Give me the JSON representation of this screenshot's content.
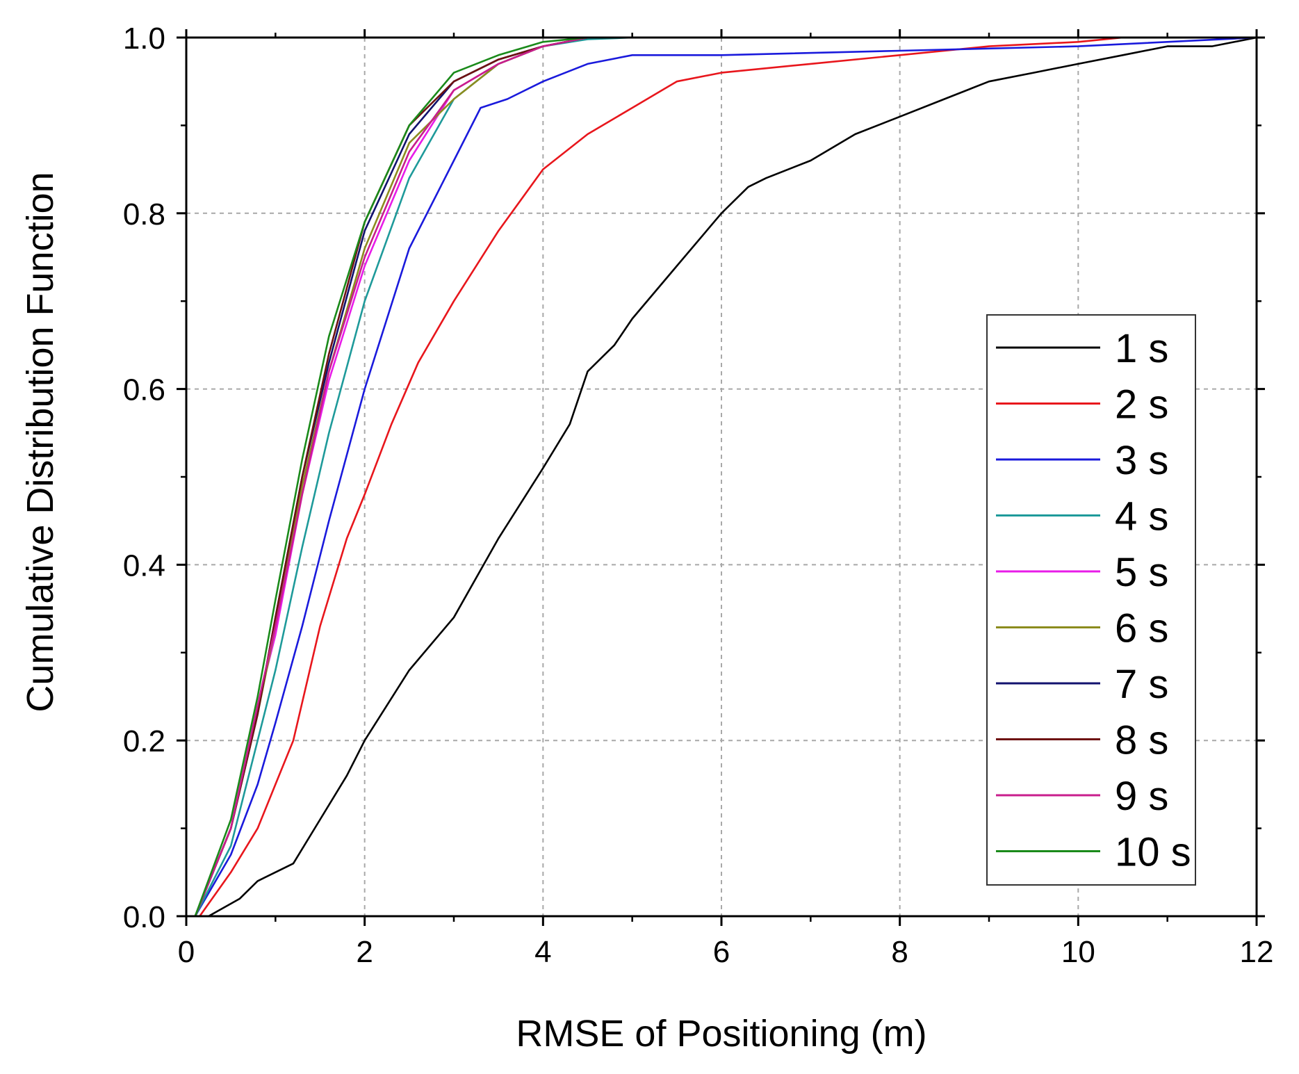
{
  "chart_data": {
    "type": "line",
    "title": "",
    "xlabel": "RMSE of Positioning (m)",
    "ylabel": "Cumulative Distribution Function",
    "xlim": [
      0,
      12
    ],
    "ylim": [
      0,
      1.0
    ],
    "xticks": [
      0,
      2,
      4,
      6,
      8,
      10,
      12
    ],
    "xtick_labels": [
      "0",
      "2",
      "4",
      "6",
      "8",
      "10",
      "12"
    ],
    "yticks": [
      0.0,
      0.2,
      0.4,
      0.6,
      0.8,
      1.0
    ],
    "ytick_labels": [
      "0.0",
      "0.2",
      "0.4",
      "0.6",
      "0.8",
      "1.0"
    ],
    "grid": true,
    "legend_position": "bottom-right",
    "series": [
      {
        "name": "1 s",
        "color": "#000000",
        "x": [
          0.25,
          0.6,
          0.8,
          1.0,
          1.2,
          1.5,
          1.8,
          2.0,
          2.5,
          3.0,
          3.5,
          4.0,
          4.3,
          4.5,
          4.8,
          5.0,
          5.5,
          6.0,
          6.3,
          6.5,
          7.0,
          7.5,
          8.0,
          8.5,
          9.0,
          9.5,
          10.0,
          10.5,
          11.0,
          11.5,
          12.0
        ],
        "y": [
          0.0,
          0.02,
          0.04,
          0.05,
          0.06,
          0.11,
          0.16,
          0.2,
          0.28,
          0.34,
          0.43,
          0.51,
          0.56,
          0.62,
          0.65,
          0.68,
          0.74,
          0.8,
          0.83,
          0.84,
          0.86,
          0.89,
          0.91,
          0.93,
          0.95,
          0.96,
          0.97,
          0.98,
          0.99,
          0.99,
          1.0
        ]
      },
      {
        "name": "2 s",
        "color": "#e8161c",
        "x": [
          0.15,
          0.5,
          0.8,
          1.0,
          1.2,
          1.5,
          1.8,
          2.0,
          2.3,
          2.6,
          3.0,
          3.5,
          4.0,
          4.5,
          5.0,
          5.5,
          6.0,
          7.0,
          8.0,
          9.0,
          10.0,
          10.5,
          12.0
        ],
        "y": [
          0.0,
          0.05,
          0.1,
          0.15,
          0.2,
          0.33,
          0.43,
          0.48,
          0.56,
          0.63,
          0.7,
          0.78,
          0.85,
          0.89,
          0.92,
          0.95,
          0.96,
          0.97,
          0.98,
          0.99,
          0.995,
          1.0,
          1.0
        ]
      },
      {
        "name": "3 s",
        "color": "#1a1adc",
        "x": [
          0.1,
          0.5,
          0.8,
          1.0,
          1.3,
          1.6,
          2.0,
          2.5,
          3.0,
          3.3,
          3.6,
          4.0,
          4.5,
          5.0,
          6.0,
          8.0,
          10.0,
          12.0
        ],
        "y": [
          0.0,
          0.07,
          0.15,
          0.22,
          0.33,
          0.45,
          0.6,
          0.76,
          0.86,
          0.92,
          0.93,
          0.95,
          0.97,
          0.98,
          0.98,
          0.985,
          0.99,
          1.0
        ]
      },
      {
        "name": "4 s",
        "color": "#1e9a9a",
        "x": [
          0.1,
          0.5,
          0.8,
          1.0,
          1.3,
          1.6,
          2.0,
          2.5,
          3.0,
          3.5,
          4.0,
          4.5,
          5.0,
          12.0
        ],
        "y": [
          0.0,
          0.08,
          0.2,
          0.28,
          0.42,
          0.55,
          0.7,
          0.84,
          0.93,
          0.97,
          0.99,
          0.998,
          1.0,
          1.0
        ]
      },
      {
        "name": "5 s",
        "color": "#e81ce8",
        "x": [
          0.1,
          0.5,
          0.8,
          1.0,
          1.3,
          1.6,
          2.0,
          2.5,
          3.0,
          3.5,
          4.0,
          4.5,
          12.0
        ],
        "y": [
          0.0,
          0.1,
          0.24,
          0.32,
          0.48,
          0.61,
          0.74,
          0.86,
          0.94,
          0.97,
          0.99,
          1.0,
          1.0
        ]
      },
      {
        "name": "6 s",
        "color": "#8c8c1e",
        "x": [
          0.1,
          0.5,
          0.8,
          1.0,
          1.3,
          1.6,
          2.0,
          2.5,
          3.0,
          3.5,
          4.0,
          4.5,
          12.0
        ],
        "y": [
          0.0,
          0.1,
          0.23,
          0.33,
          0.49,
          0.62,
          0.76,
          0.88,
          0.93,
          0.97,
          0.99,
          1.0,
          1.0
        ]
      },
      {
        "name": "7 s",
        "color": "#12126e",
        "x": [
          0.1,
          0.5,
          0.8,
          1.0,
          1.3,
          1.6,
          2.0,
          2.5,
          3.0,
          3.5,
          4.0,
          4.5,
          12.0
        ],
        "y": [
          0.0,
          0.1,
          0.23,
          0.34,
          0.5,
          0.63,
          0.78,
          0.89,
          0.95,
          0.975,
          0.99,
          1.0,
          1.0
        ]
      },
      {
        "name": "8 s",
        "color": "#6e1212",
        "x": [
          0.1,
          0.5,
          0.8,
          1.0,
          1.3,
          1.6,
          2.0,
          2.5,
          3.0,
          3.5,
          4.0,
          4.5,
          12.0
        ],
        "y": [
          0.0,
          0.1,
          0.23,
          0.34,
          0.5,
          0.64,
          0.79,
          0.9,
          0.95,
          0.975,
          0.99,
          1.0,
          1.0
        ]
      },
      {
        "name": "9 s",
        "color": "#c81e8c",
        "x": [
          0.1,
          0.5,
          0.8,
          1.0,
          1.3,
          1.6,
          2.0,
          2.5,
          3.0,
          3.5,
          4.0,
          4.5,
          12.0
        ],
        "y": [
          0.0,
          0.1,
          0.24,
          0.33,
          0.48,
          0.62,
          0.75,
          0.87,
          0.94,
          0.97,
          0.99,
          1.0,
          1.0
        ]
      },
      {
        "name": "10 s",
        "color": "#1a8a1a",
        "x": [
          0.1,
          0.5,
          0.8,
          1.0,
          1.3,
          1.6,
          2.0,
          2.5,
          3.0,
          3.5,
          4.0,
          4.5,
          12.0
        ],
        "y": [
          0.0,
          0.11,
          0.25,
          0.36,
          0.52,
          0.66,
          0.79,
          0.9,
          0.96,
          0.98,
          0.995,
          1.0,
          1.0
        ]
      }
    ]
  }
}
